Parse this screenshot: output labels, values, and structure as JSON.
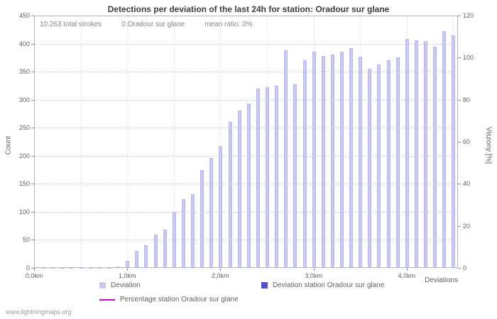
{
  "title": "Detections per deviation of the last 24h for station: Oradour sur glane",
  "stats": {
    "total_strokes": "10.263 total strokes",
    "station_strokes": "0 Oradour sur glane",
    "mean_ratio": "mean ratio: 0%"
  },
  "axes": {
    "left_label": "Count",
    "right_label": "Viszony [%]",
    "x_label": "Deviations",
    "left_ticks": [
      0,
      50,
      100,
      150,
      200,
      250,
      300,
      350,
      400,
      450
    ],
    "right_ticks": [
      0,
      20,
      40,
      60,
      80,
      100,
      120
    ],
    "x_ticks": [
      {
        "km": 0.0,
        "label": "0,0km"
      },
      {
        "km": 1.0,
        "label": "1,0km"
      },
      {
        "km": 2.0,
        "label": "2,0km"
      },
      {
        "km": 3.0,
        "label": "3,0km"
      },
      {
        "km": 4.0,
        "label": "4,0km"
      }
    ]
  },
  "legend": [
    {
      "label": "Deviation",
      "color": "#c9c9f2",
      "type": "square"
    },
    {
      "label": "Deviation station Oradour sur glane",
      "color": "#5050cc",
      "type": "square"
    },
    {
      "label": "Percentage station Oradour sur glane",
      "color": "#c800c8",
      "type": "line"
    }
  ],
  "watermark": "www.lightningmaps.org",
  "chart_data": {
    "type": "bar",
    "title": "Detections per deviation of the last 24h for station: Oradour sur glane",
    "xlabel": "Deviations",
    "ylabel_left": "Count",
    "ylabel_right": "Viszony [%]",
    "ylim_left": [
      0,
      450
    ],
    "ylim_right": [
      0,
      120
    ],
    "xlim": [
      0,
      4.55
    ],
    "grid": true,
    "legend_position": "bottom",
    "x_km": [
      0.0,
      0.1,
      0.2,
      0.3,
      0.4,
      0.5,
      0.6,
      0.7,
      0.8,
      0.9,
      1.0,
      1.1,
      1.2,
      1.3,
      1.4,
      1.5,
      1.6,
      1.7,
      1.8,
      1.9,
      2.0,
      2.1,
      2.2,
      2.3,
      2.4,
      2.5,
      2.6,
      2.7,
      2.8,
      2.9,
      3.0,
      3.1,
      3.2,
      3.3,
      3.4,
      3.5,
      3.6,
      3.7,
      3.8,
      3.9,
      4.0,
      4.1,
      4.2,
      4.3,
      4.4,
      4.5
    ],
    "series": [
      {
        "name": "Deviation",
        "axis": "left",
        "values": [
          1,
          1,
          1,
          1,
          1,
          1,
          1,
          1,
          1,
          3,
          13,
          30,
          40,
          60,
          68,
          100,
          122,
          131,
          175,
          196,
          218,
          261,
          280,
          293,
          320,
          322,
          325,
          388,
          327,
          370,
          385,
          378,
          380,
          386,
          392,
          377,
          355,
          363,
          370,
          375,
          408,
          406,
          405,
          395,
          422,
          415
        ]
      },
      {
        "name": "Deviation station Oradour sur glane",
        "axis": "left",
        "values": [
          0,
          0,
          0,
          0,
          0,
          0,
          0,
          0,
          0,
          0,
          0,
          0,
          0,
          0,
          0,
          0,
          0,
          0,
          0,
          0,
          0,
          0,
          0,
          0,
          0,
          0,
          0,
          0,
          0,
          0,
          0,
          0,
          0,
          0,
          0,
          0,
          0,
          0,
          0,
          0,
          0,
          0,
          0,
          0,
          0,
          0
        ]
      },
      {
        "name": "Percentage station Oradour sur glane",
        "axis": "right",
        "values": [
          0,
          0,
          0,
          0,
          0,
          0,
          0,
          0,
          0,
          0,
          0,
          0,
          0,
          0,
          0,
          0,
          0,
          0,
          0,
          0,
          0,
          0,
          0,
          0,
          0,
          0,
          0,
          0,
          0,
          0,
          0,
          0,
          0,
          0,
          0,
          0,
          0,
          0,
          0,
          0,
          0,
          0,
          0,
          0,
          0,
          0
        ]
      }
    ]
  }
}
